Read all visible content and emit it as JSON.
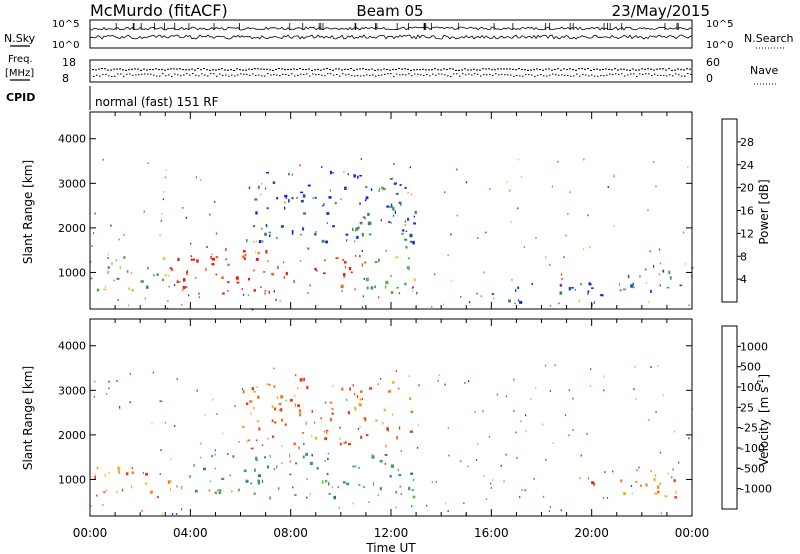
{
  "header": {
    "station": "McMurdo (fitACF)",
    "beam": "Beam 05",
    "date": "23/May/2015"
  },
  "top_panels": {
    "left_labels": [
      "N.Sky",
      "Freq.",
      "[MHz]",
      "CPID"
    ],
    "right_labels": [
      "N.Search",
      "Nave"
    ],
    "sky_scale": [
      "10^5",
      "10^0"
    ],
    "search_scale": [
      "10^5",
      "10^0"
    ],
    "freq_scale": [
      "18",
      "8"
    ],
    "nave_scale": [
      "60",
      "0"
    ],
    "cpid_text": "normal (fast) 151 RF"
  },
  "chart_data": [
    {
      "type": "heatmap",
      "name": "power",
      "xlabel": "",
      "ylabel": "Slant Range [km]",
      "x_ticks": [
        "00:00",
        "04:00",
        "08:00",
        "12:00",
        "16:00",
        "20:00",
        "00:00"
      ],
      "xlim": [
        0,
        24
      ],
      "y_ticks": [
        "1000",
        "2000",
        "3000",
        "4000"
      ],
      "ylim": [
        180,
        4600
      ],
      "colorbar": {
        "label": "Power [dB]",
        "ticks": [
          "4",
          "8",
          "12",
          "16",
          "20",
          "24",
          "28"
        ],
        "colors": [
          "#0a1ee6",
          "#1a50b4",
          "#3c8c5a",
          "#4cb04c",
          "#d8d23c",
          "#f5a020",
          "#f06a14",
          "#e61a14"
        ]
      },
      "regions": [
        {
          "t": [
            0,
            3
          ],
          "r": [
            600,
            1400
          ],
          "level": "12-16"
        },
        {
          "t": [
            3,
            11
          ],
          "r": [
            550,
            1600
          ],
          "level": "28+"
        },
        {
          "t": [
            11,
            13
          ],
          "r": [
            550,
            1600
          ],
          "level": "12-16"
        },
        {
          "t": [
            6,
            13
          ],
          "r": [
            1700,
            3300
          ],
          "level": "4-8"
        },
        {
          "t": [
            16,
            21
          ],
          "r": [
            300,
            800
          ],
          "level": "4-8"
        },
        {
          "t": [
            21,
            24
          ],
          "r": [
            600,
            1300
          ],
          "level": "8-12"
        }
      ]
    },
    {
      "type": "heatmap",
      "name": "velocity",
      "xlabel": "Time UT",
      "ylabel": "Slant Range [km]",
      "x_ticks": [
        "00:00",
        "04:00",
        "08:00",
        "12:00",
        "16:00",
        "20:00",
        "00:00"
      ],
      "xlim": [
        0,
        24
      ],
      "y_ticks": [
        "1000",
        "2000",
        "3000",
        "4000"
      ],
      "ylim": [
        180,
        4600
      ],
      "colorbar": {
        "label": "Velocity",
        "unit_label": "[m s",
        "unit_exp": "-1",
        "ticks": [
          "1000",
          "500",
          "100",
          "25",
          "-25",
          "-100",
          "-500",
          "-1000"
        ],
        "colors": [
          "#1a40c8",
          "#2c70a0",
          "#3c9a64",
          "#5ac04a",
          "#bebebe",
          "#f5b020",
          "#f07a18",
          "#e63c14",
          "#e61414"
        ]
      },
      "regions": [
        {
          "t": [
            0,
            4
          ],
          "r": [
            600,
            1300
          ],
          "level": "-100 to -500"
        },
        {
          "t": [
            4,
            13
          ],
          "r": [
            600,
            1600
          ],
          "level": "100 to 500"
        },
        {
          "t": [
            6,
            13
          ],
          "r": [
            1700,
            3300
          ],
          "level": "-100 to -500"
        },
        {
          "t": [
            18.5,
            20.5
          ],
          "r": [
            900,
            1100
          ],
          "level": "-500 to -1000"
        },
        {
          "t": [
            21,
            24
          ],
          "r": [
            600,
            1300
          ],
          "level": "-100 to -500"
        }
      ]
    }
  ]
}
